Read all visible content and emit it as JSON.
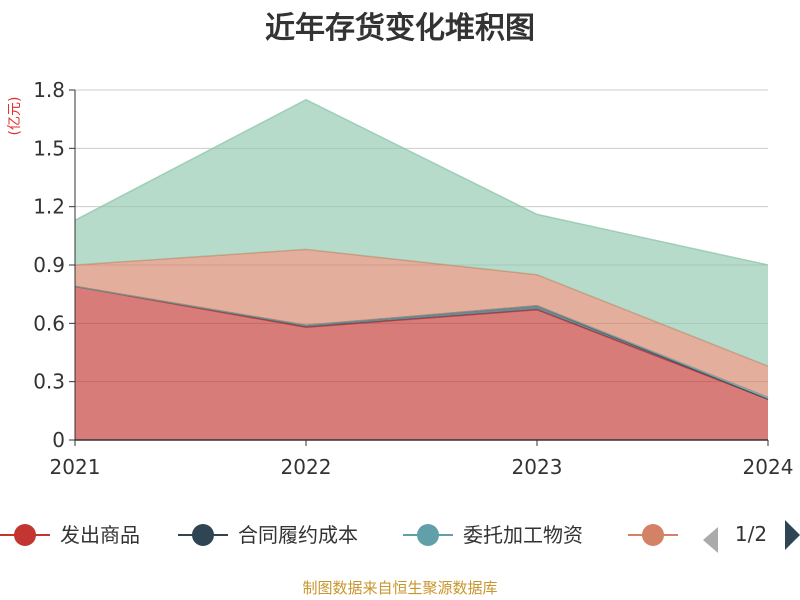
{
  "chart_data": {
    "type": "area",
    "stacked": true,
    "title": "近年存货变化堆积图",
    "unit_label": "(亿元)",
    "categories": [
      "2021",
      "2022",
      "2023",
      "2024"
    ],
    "ylim": [
      0,
      1.8
    ],
    "yticks": [
      0,
      0.3,
      0.6,
      0.9,
      1.2,
      1.5,
      1.8
    ],
    "grid": true,
    "legend_position": "bottom",
    "series": [
      {
        "name": "发出商品",
        "color": "#c23531",
        "values": [
          0.79,
          0.58,
          0.67,
          0.21
        ]
      },
      {
        "name": "合同履约成本",
        "color": "#2f4554",
        "values": [
          0.0,
          0.01,
          0.02,
          0.0
        ]
      },
      {
        "name": "委托加工物资",
        "color": "#61a0a8",
        "values": [
          0.0,
          0.0,
          0.0,
          0.01
        ]
      },
      {
        "name": "",
        "color": "#d48265",
        "values": [
          0.11,
          0.39,
          0.16,
          0.16
        ]
      },
      {
        "name": "",
        "color": "#91c7ae",
        "values": [
          0.23,
          0.77,
          0.31,
          0.52
        ]
      }
    ]
  },
  "legend": {
    "items": [
      {
        "label": "发出商品",
        "color": "#c23531"
      },
      {
        "label": "合同履约成本",
        "color": "#2f4554"
      },
      {
        "label": "委托加工物资",
        "color": "#61a0a8"
      },
      {
        "label": "",
        "color": "#d48265"
      }
    ],
    "page_indicator": "1/2",
    "prev_color": "#aaaaaa",
    "next_color": "#2f4554"
  },
  "source": "制图数据来自恒生聚源数据库"
}
